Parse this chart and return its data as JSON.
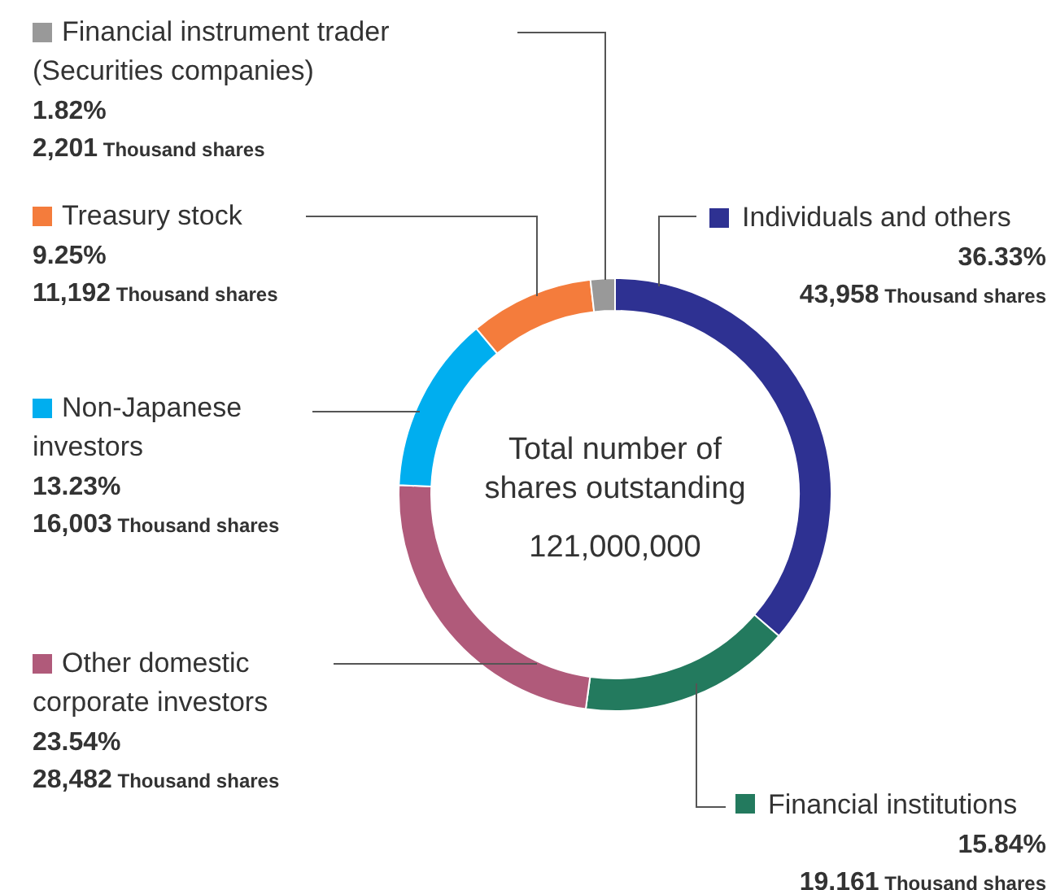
{
  "chart_data": {
    "type": "donut",
    "title": "Total number of shares outstanding",
    "subtitle": "121,000,000",
    "categories": [
      "Individuals and others",
      "Financial institutions",
      "Other domestic corporate investors",
      "Non-Japanese investors",
      "Treasury stock",
      "Financial instrument trader (Securities companies)"
    ],
    "values": [
      36.33,
      15.84,
      23.54,
      13.23,
      9.25,
      1.82
    ],
    "colors": [
      "#2e3192",
      "#237a5e",
      "#b05a7a",
      "#00aeef",
      "#f47c3c",
      "#999999"
    ],
    "value_labels": [
      "36.33%",
      "15.84%",
      "23.54%",
      "13.23%",
      "9.25%",
      "1.82%"
    ],
    "annotations": [
      "43,958 Thousand shares",
      "19.161 Thousand shares",
      "28,482 Thousand shares",
      "16,003 Thousand shares",
      "11,192 Thousand shares",
      "2,201 Thousand shares"
    ],
    "legend": "left"
  }
}
